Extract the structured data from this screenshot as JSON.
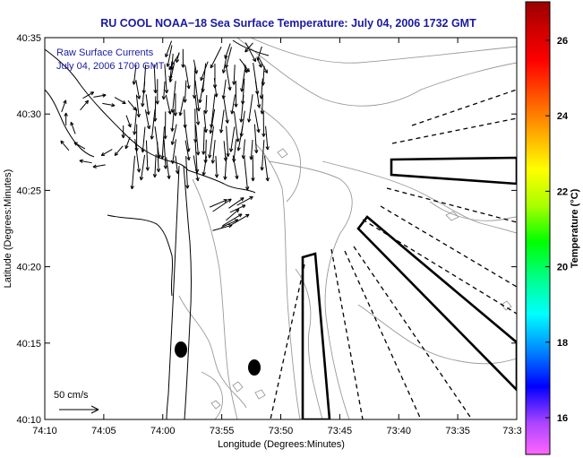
{
  "title": "RU COOL  NOAA−18  Sea Surface Temperature:  July 04, 2006 1732 GMT",
  "inset_lines": [
    "Raw Surface Currents",
    "July 04, 2006 1700 GMT"
  ],
  "scale_label": "50 cm/s",
  "xlabel": "Longitude (Degrees:Minutes)",
  "ylabel": "Latitude (Degrees:Minutes)",
  "x_ticks": [
    "74:10",
    "74:05",
    "74:00",
    "73:55",
    "73:50",
    "73:45",
    "73:40",
    "73:35",
    "73:3"
  ],
  "y_ticks": [
    "40:35",
    "40:30",
    "40:25",
    "40:20",
    "40:15",
    "40:10"
  ],
  "colorbar": {
    "label": "Temperature (°C)",
    "ticks": [
      "26",
      "24",
      "22",
      "20",
      "18",
      "16"
    ],
    "stops": [
      "#ff66ff",
      "#aa44ff",
      "#0000ff",
      "#0088ff",
      "#00ffff",
      "#00ff88",
      "#00ff00",
      "#aaff00",
      "#ffff00",
      "#ffaa00",
      "#ff5500",
      "#ff0000",
      "#cc0000",
      "#990000"
    ]
  },
  "colors": {
    "title": "#1a1aa0",
    "land": "#ffffff",
    "contour": "#9a9a9a"
  },
  "markers": [
    "station-1",
    "station-2"
  ]
}
